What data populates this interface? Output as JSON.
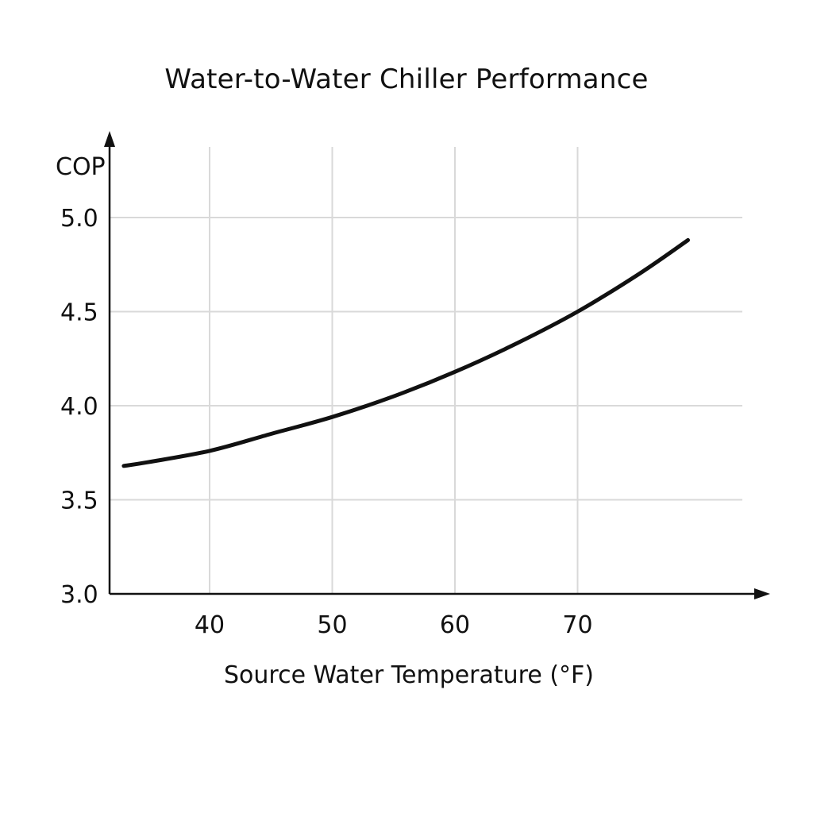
{
  "chart_data": {
    "type": "line",
    "title": "Water-to-Water Chiller Performance",
    "xlabel": "Source Water Temperature (°F)",
    "ylabel": "COP",
    "xlim": [
      32,
      80
    ],
    "ylim": [
      3.0,
      5.0
    ],
    "x_ticks": [
      40,
      50,
      60,
      70
    ],
    "y_ticks": [
      "3.0",
      "3.5",
      "4.0",
      "4.5",
      "5.0"
    ],
    "grid": true,
    "series": [
      {
        "x": [
          33,
          35,
          40,
          45,
          50,
          55,
          60,
          65,
          70,
          75,
          79
        ],
        "y": [
          3.68,
          3.7,
          3.76,
          3.85,
          3.94,
          4.05,
          4.18,
          4.33,
          4.5,
          4.7,
          4.88
        ]
      }
    ]
  }
}
